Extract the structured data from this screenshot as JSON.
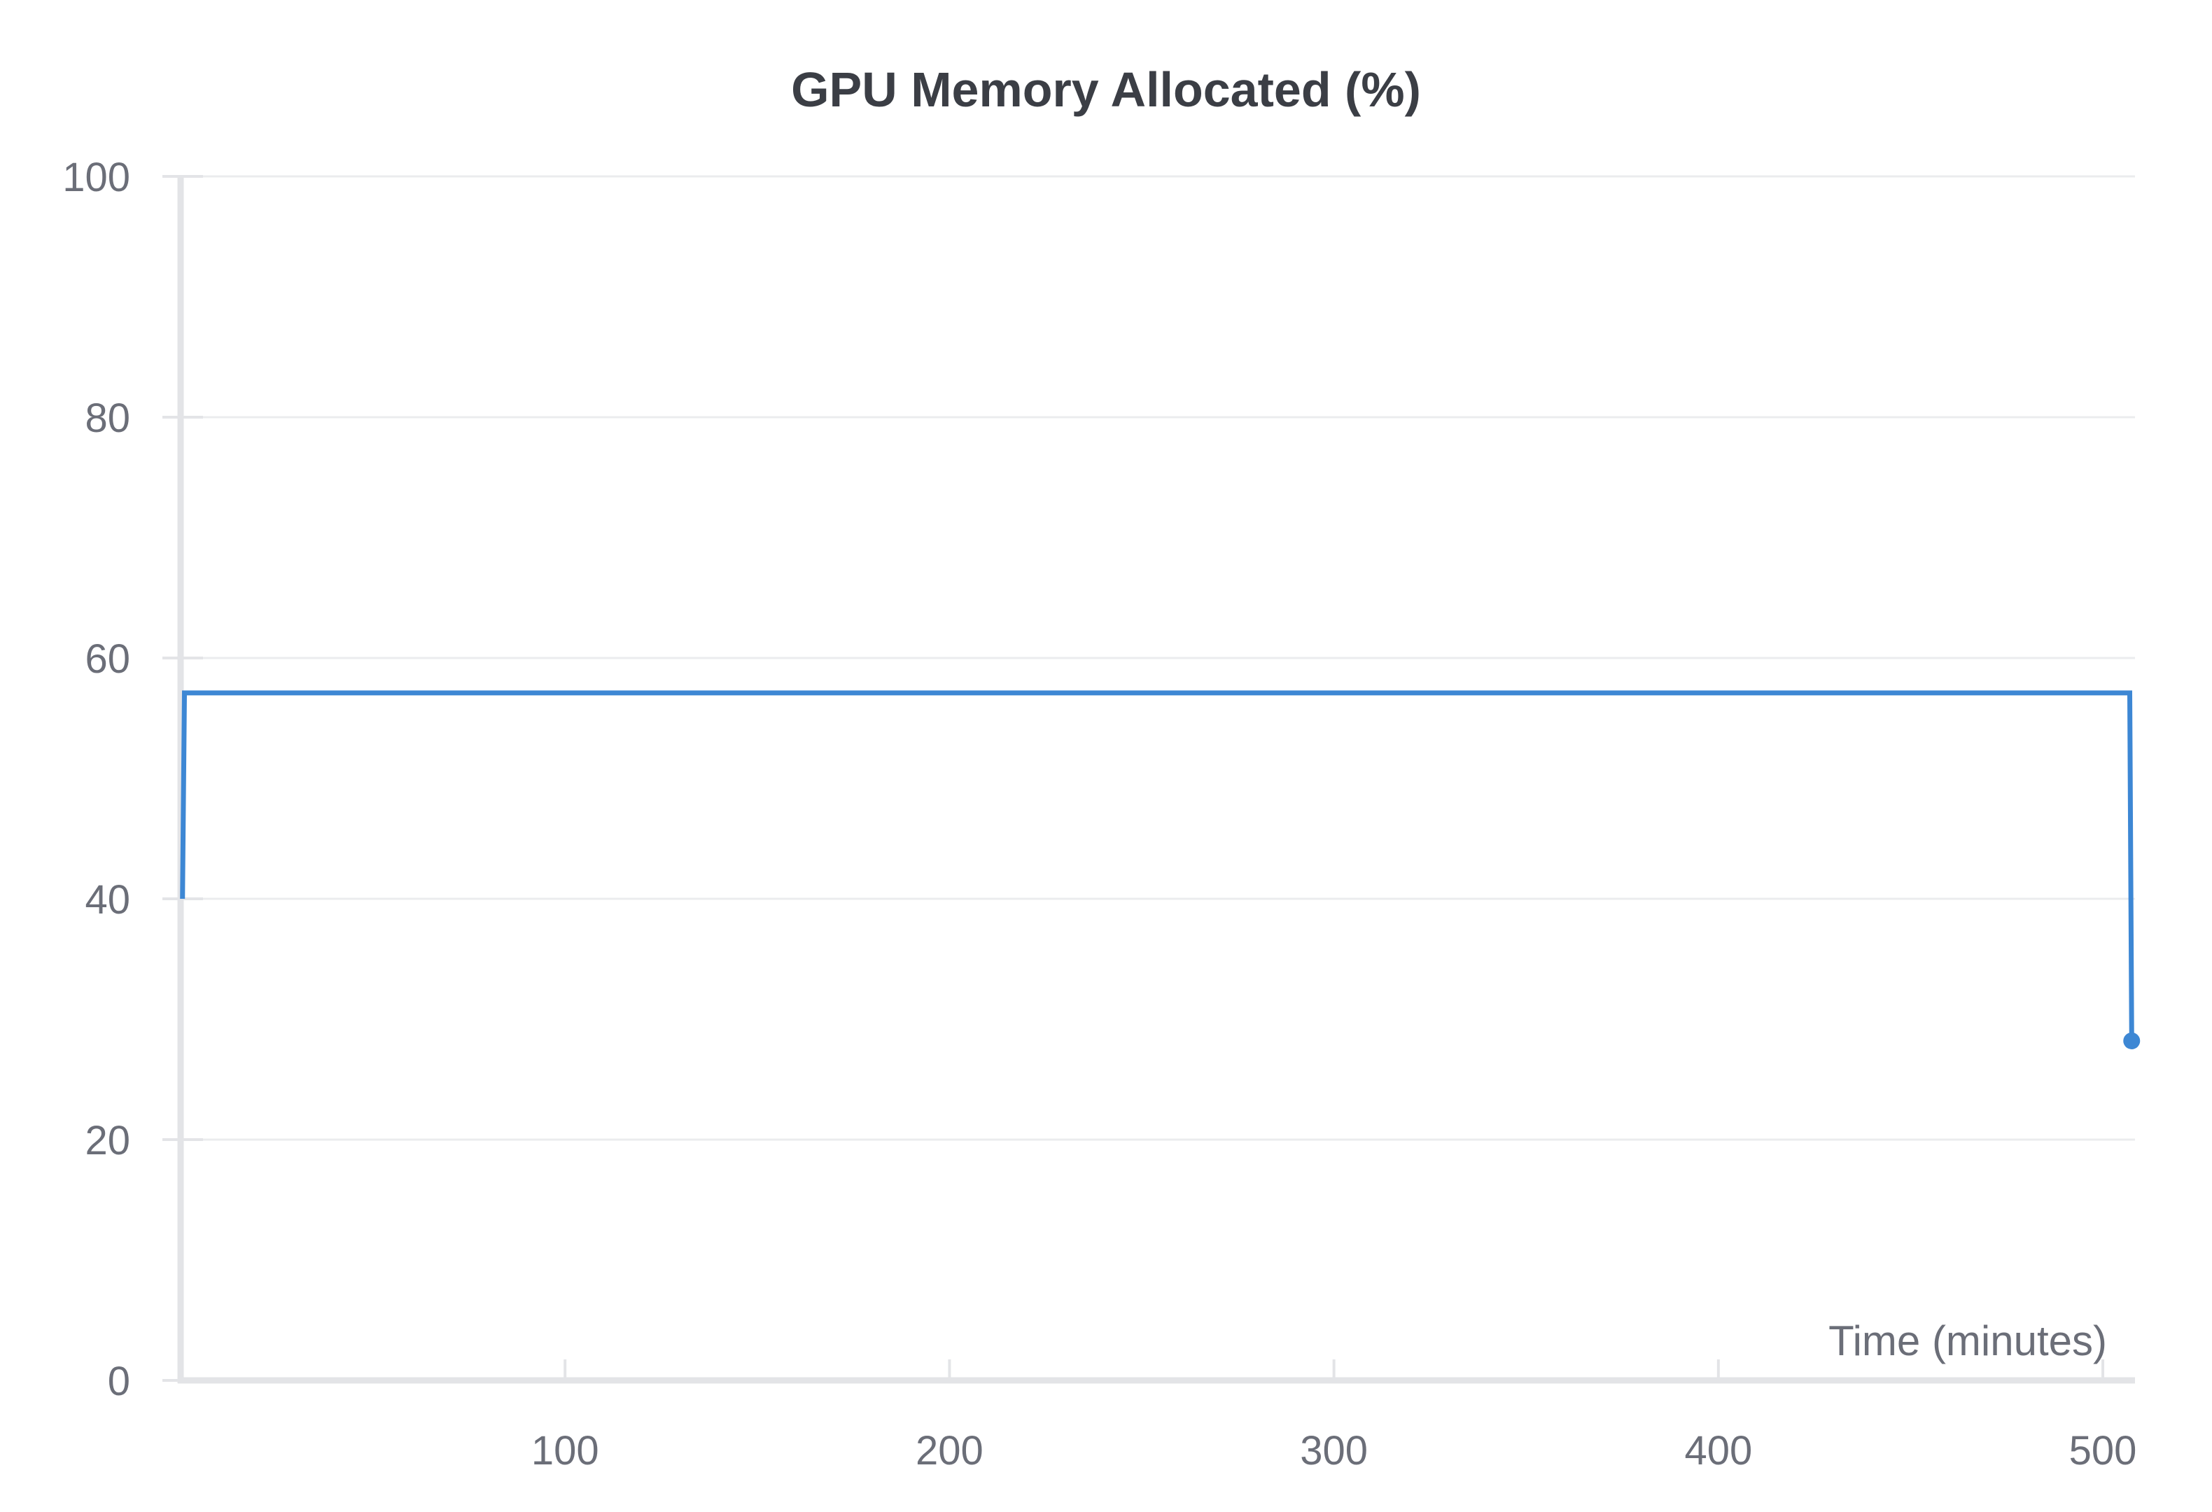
{
  "chart_data": {
    "type": "line",
    "title": "GPU Memory Allocated (%)",
    "xlabel": "Time (minutes)",
    "ylabel": "",
    "xlim": [
      0,
      508
    ],
    "ylim": [
      0,
      100
    ],
    "x_ticks": [
      100,
      200,
      300,
      400,
      500
    ],
    "y_ticks": [
      0,
      20,
      40,
      60,
      80,
      100
    ],
    "x_tick_labels": [
      "100",
      "200",
      "300",
      "400",
      "500"
    ],
    "y_tick_labels": [
      "0",
      "20",
      "40",
      "60",
      "80",
      "100"
    ],
    "grid": true,
    "series": [
      {
        "color": "#3d87d4",
        "x": [
          0.5,
          1,
          507,
          507.5
        ],
        "y": [
          40,
          57.1,
          57.1,
          28.2
        ]
      }
    ]
  }
}
